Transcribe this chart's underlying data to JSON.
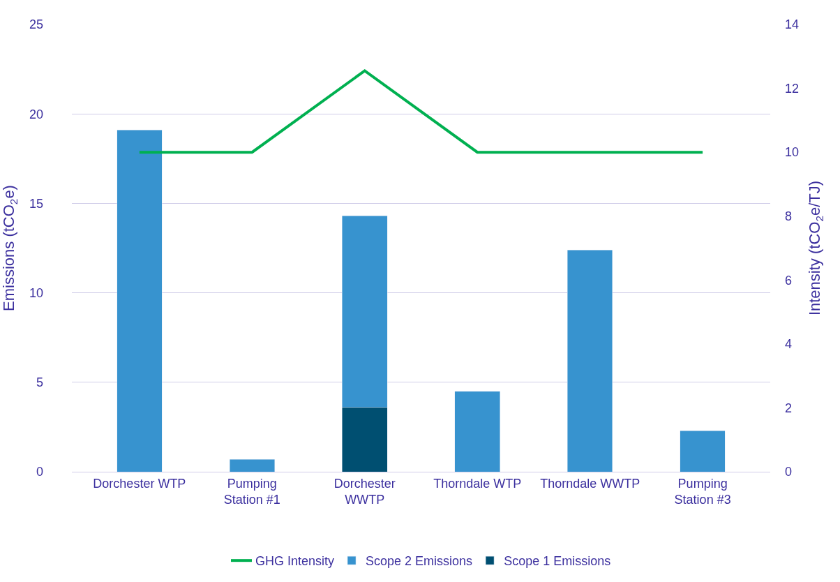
{
  "chart_data": {
    "type": "bar",
    "stacked": true,
    "categories": [
      "Dorchester WTP",
      "Pumping Station #1",
      "Dorchester WWTP",
      "Thorndale WTP",
      "Thorndale WWTP",
      "Pumping Station #3"
    ],
    "series": [
      {
        "name": "Scope 1 Emissions",
        "color": "#004f71",
        "values": [
          null,
          null,
          3.6,
          null,
          null,
          null
        ]
      },
      {
        "name": "Scope 2 Emissions",
        "color": "#3793cf",
        "values": [
          19.1,
          0.7,
          10.7,
          4.5,
          12.4,
          2.3
        ]
      },
      {
        "name": "GHG Intensity",
        "type": "line",
        "axis": "y2",
        "color": "#00b050",
        "marker": "none",
        "values": [
          10.0,
          10.0,
          12.55,
          10.0,
          10.0,
          10.0
        ]
      }
    ],
    "ylabel": "Emissions (tCO$_{2}$e)",
    "y2label": "Intensity (tCO$_{2}$e/TJ)",
    "ylim": [
      0,
      25
    ],
    "yticks": [
      0,
      5,
      10,
      15,
      20,
      25
    ],
    "y2lim": [
      0,
      14
    ],
    "y2ticks": [
      0,
      2,
      4,
      6,
      8,
      10,
      12,
      14
    ],
    "grid": "y",
    "legend": "bottom"
  }
}
